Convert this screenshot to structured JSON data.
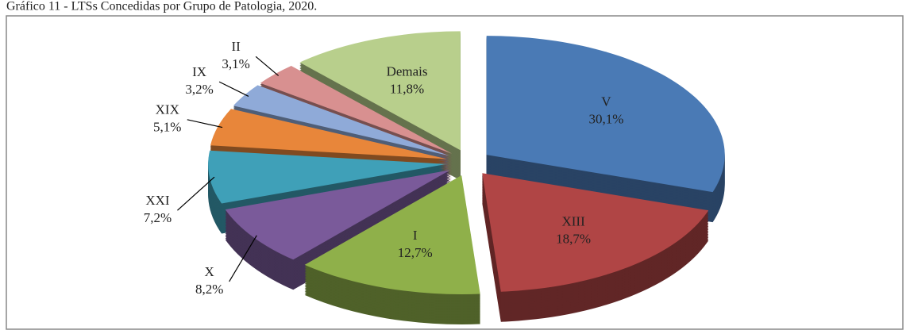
{
  "chart_data": {
    "type": "pie3d",
    "title": "Gráfico 11 - LTSs Concedidas por Grupo de Patologia, 2020.",
    "categories": [
      "V",
      "XIII",
      "I",
      "X",
      "XXI",
      "XIX",
      "IX",
      "II",
      "Demais"
    ],
    "values": [
      30.1,
      18.7,
      12.7,
      8.2,
      7.2,
      5.1,
      3.2,
      3.1,
      11.8
    ],
    "value_labels": [
      "30,1%",
      "18,7%",
      "12,7%",
      "8,2%",
      "7,2%",
      "5,1%",
      "3,2%",
      "3,1%",
      "11,8%"
    ],
    "colors": [
      "#4a7ab5",
      "#b04545",
      "#8fb04a",
      "#7a5a9a",
      "#3fa0b8",
      "#e8863a",
      "#8faad8",
      "#d89090",
      "#b8cf8c"
    ]
  }
}
